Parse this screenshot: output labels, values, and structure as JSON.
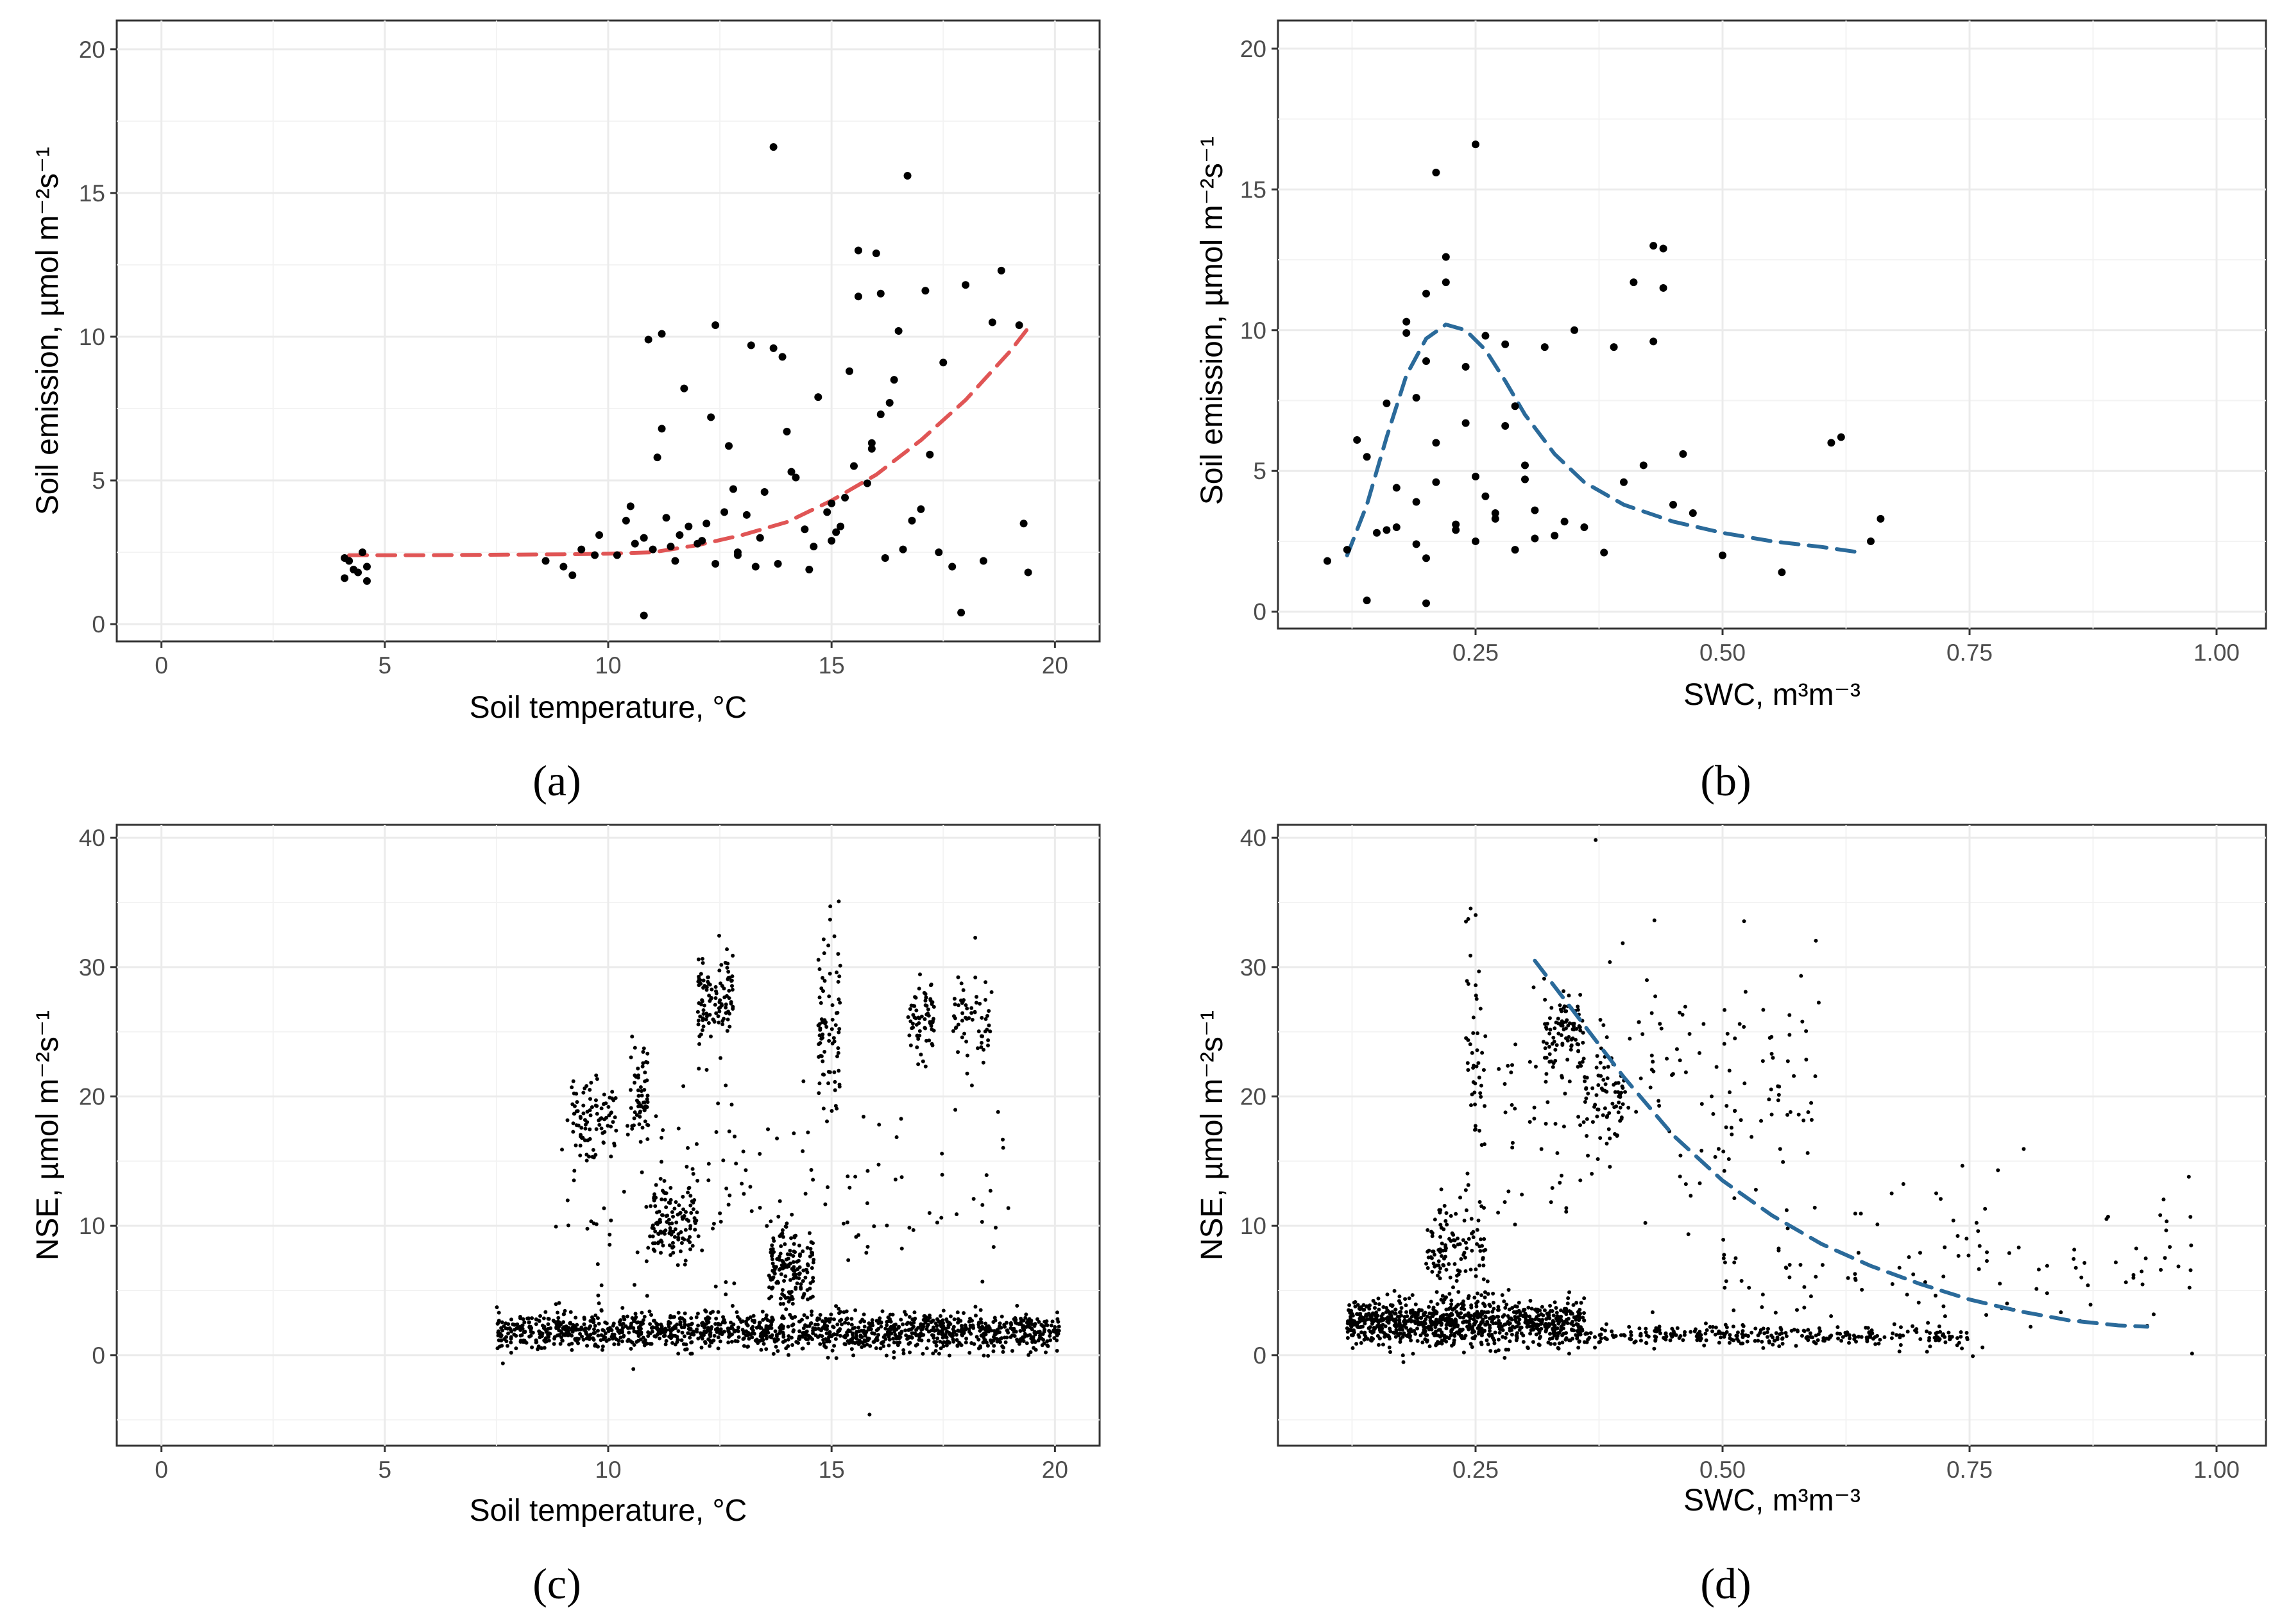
{
  "chart_data": [
    {
      "type": "scatter",
      "caption": "(a)",
      "xlabel": "Soil temperature, °C",
      "ylabel": "Soil emission, µmol m⁻²s⁻¹",
      "xlim": [
        -1,
        21
      ],
      "ylim": [
        -0.6,
        21
      ],
      "xticks": [
        0,
        5,
        10,
        15,
        20
      ],
      "xtick_labels": [
        "0",
        "5",
        "10",
        "15",
        "20"
      ],
      "yticks": [
        0,
        5,
        10,
        15,
        20
      ],
      "ytick_labels": [
        "0",
        "5",
        "10",
        "15",
        "20"
      ],
      "grid": true,
      "legend": "none",
      "point_color": "#000000",
      "fit_color": "#e05555",
      "fit_style": "dashed",
      "fit": {
        "x": [
          4.2,
          6,
          8,
          9,
          10,
          11,
          12,
          13,
          14,
          15,
          16,
          17,
          18,
          19,
          19.4
        ],
        "y": [
          2.4,
          2.4,
          2.42,
          2.43,
          2.45,
          2.5,
          2.75,
          3.1,
          3.55,
          4.3,
          5.2,
          6.4,
          7.8,
          9.5,
          10.3
        ]
      },
      "points": {
        "x": [
          4.1,
          4.2,
          4.3,
          4.5,
          4.6,
          4.4,
          4.1,
          4.6,
          8.6,
          9.0,
          9.4,
          9.8,
          10.2,
          10.5,
          10.8,
          11.0,
          11.2,
          11.5,
          11.8,
          12.0,
          12.3,
          12.6,
          12.9,
          13.2,
          13.5,
          13.8,
          14.1,
          14.4,
          14.7,
          15.0,
          15.3,
          15.6,
          15.9,
          16.2,
          16.5,
          16.8,
          17.1,
          17.4,
          17.7,
          18.0,
          18.4,
          18.8,
          19.2,
          19.3,
          19.4,
          10.9,
          11.3,
          11.7,
          12.4,
          12.7,
          13.1,
          13.7,
          14.2,
          14.6,
          15.1,
          15.4,
          15.8,
          16.1,
          16.6,
          17.0,
          17.5,
          9.2,
          9.7,
          10.4,
          11.1,
          12.1,
          12.8,
          13.4,
          14.0,
          14.9,
          15.5,
          16.0,
          16.4,
          17.2,
          18.6,
          13.7,
          16.7,
          15.6,
          16.1,
          11.2,
          12.4,
          13.9,
          15.0,
          15.9,
          16.3,
          10.6,
          11.6,
          12.9,
          14.5,
          15.2,
          17.9,
          10.8,
          11.4,
          12.2,
          13.3
        ],
        "y": [
          1.6,
          2.2,
          1.9,
          2.5,
          2.0,
          1.8,
          2.3,
          1.5,
          2.2,
          2.0,
          2.6,
          3.1,
          2.4,
          4.1,
          3.0,
          2.6,
          6.8,
          2.2,
          3.4,
          2.8,
          7.2,
          3.9,
          2.5,
          9.7,
          4.6,
          2.1,
          5.3,
          3.3,
          7.9,
          2.9,
          4.4,
          11.4,
          6.1,
          2.3,
          10.2,
          3.6,
          11.6,
          2.5,
          2.0,
          11.8,
          2.2,
          12.3,
          10.4,
          3.5,
          1.8,
          9.9,
          3.7,
          8.2,
          2.1,
          6.2,
          3.8,
          9.6,
          5.1,
          2.7,
          3.2,
          8.8,
          4.9,
          7.3,
          2.6,
          4.0,
          9.1,
          1.7,
          2.4,
          3.6,
          5.8,
          2.9,
          4.7,
          3.0,
          6.7,
          3.9,
          5.5,
          12.9,
          8.5,
          5.9,
          10.5,
          16.6,
          15.6,
          13.0,
          11.5,
          10.1,
          10.4,
          9.3,
          4.2,
          6.3,
          7.7,
          2.8,
          3.1,
          2.4,
          1.9,
          3.4,
          0.4,
          0.3,
          2.7,
          3.5,
          2.0
        ]
      }
    },
    {
      "type": "scatter",
      "caption": "(b)",
      "xlabel": "SWC, m³m⁻³",
      "ylabel": "Soil emission, µmol m⁻²s⁻¹",
      "xlim": [
        0.05,
        1.05
      ],
      "ylim": [
        -0.6,
        21
      ],
      "xticks": [
        0.25,
        0.5,
        0.75,
        1.0
      ],
      "xtick_labels": [
        "0.25",
        "0.50",
        "0.75",
        "1.00"
      ],
      "yticks": [
        0,
        5,
        10,
        15,
        20
      ],
      "ytick_labels": [
        "0",
        "5",
        "10",
        "15",
        "20"
      ],
      "grid": true,
      "legend": "none",
      "point_color": "#000000",
      "fit_color": "#2a6a9a",
      "fit_style": "dashed",
      "fit": {
        "x": [
          0.12,
          0.14,
          0.16,
          0.18,
          0.2,
          0.22,
          0.24,
          0.26,
          0.28,
          0.3,
          0.33,
          0.36,
          0.4,
          0.45,
          0.5,
          0.55,
          0.6,
          0.64
        ],
        "y": [
          2.0,
          3.8,
          6.2,
          8.4,
          9.7,
          10.2,
          10.0,
          9.3,
          8.2,
          7.0,
          5.6,
          4.6,
          3.8,
          3.2,
          2.8,
          2.5,
          2.3,
          2.1
        ]
      },
      "points": {
        "x": [
          0.1,
          0.12,
          0.14,
          0.15,
          0.16,
          0.17,
          0.18,
          0.19,
          0.2,
          0.21,
          0.22,
          0.23,
          0.24,
          0.25,
          0.26,
          0.27,
          0.28,
          0.29,
          0.3,
          0.31,
          0.32,
          0.33,
          0.34,
          0.36,
          0.38,
          0.4,
          0.41,
          0.42,
          0.43,
          0.44,
          0.45,
          0.46,
          0.47,
          0.5,
          0.56,
          0.61,
          0.62,
          0.66,
          0.65,
          0.13,
          0.17,
          0.19,
          0.21,
          0.23,
          0.25,
          0.27,
          0.29,
          0.31,
          0.18,
          0.2,
          0.22,
          0.24,
          0.26,
          0.28,
          0.16,
          0.2,
          0.21,
          0.25,
          0.14,
          0.3,
          0.35,
          0.39,
          0.43,
          0.44,
          0.2,
          0.19
        ],
        "y": [
          1.8,
          2.2,
          5.5,
          2.8,
          7.4,
          3.0,
          9.9,
          2.4,
          11.3,
          4.6,
          12.6,
          3.1,
          8.7,
          2.5,
          9.8,
          3.5,
          6.6,
          2.2,
          5.2,
          3.6,
          9.4,
          2.7,
          3.2,
          3.0,
          2.1,
          4.6,
          11.7,
          5.2,
          13.0,
          11.5,
          3.8,
          5.6,
          3.5,
          2.0,
          1.4,
          6.0,
          6.2,
          3.3,
          2.5,
          6.1,
          4.4,
          7.6,
          6.0,
          2.9,
          4.8,
          3.3,
          7.3,
          2.6,
          10.3,
          8.9,
          11.7,
          6.7,
          4.1,
          9.5,
          2.9,
          1.9,
          15.6,
          16.6,
          0.4,
          4.7,
          10.0,
          9.4,
          9.6,
          12.9,
          0.3,
          3.9
        ]
      }
    },
    {
      "type": "scatter",
      "caption": "(c)",
      "xlabel": "Soil temperature, °C",
      "ylabel": "NSE, µmol m⁻²s⁻¹",
      "xlim": [
        -1,
        21
      ],
      "ylim": [
        -7,
        41
      ],
      "xticks": [
        0,
        5,
        10,
        15,
        20
      ],
      "xtick_labels": [
        "0",
        "5",
        "10",
        "15",
        "20"
      ],
      "yticks": [
        0,
        10,
        20,
        30,
        40
      ],
      "ytick_labels": [
        "0",
        "10",
        "20",
        "30",
        "40"
      ],
      "grid": true,
      "legend": "none",
      "point_color": "#000000",
      "clusters": [
        {
          "x_range": [
            7.5,
            20.1
          ],
          "y_center": 1.8,
          "y_spread": 1.4,
          "n": 1400
        },
        {
          "x_range": [
            9.2,
            10.2
          ],
          "y_center": 18.5,
          "y_spread": 3.0,
          "n": 90
        },
        {
          "x_range": [
            10.5,
            10.9
          ],
          "y_center": 20.0,
          "y_spread": 4.0,
          "n": 60
        },
        {
          "x_range": [
            11.0,
            12.0
          ],
          "y_center": 10.5,
          "y_spread": 3.0,
          "n": 120
        },
        {
          "x_range": [
            12.0,
            12.8
          ],
          "y_center": 27.0,
          "y_spread": 4.0,
          "n": 110
        },
        {
          "x_range": [
            13.6,
            14.6
          ],
          "y_center": 6.5,
          "y_spread": 3.5,
          "n": 160
        },
        {
          "x_range": [
            14.7,
            15.2
          ],
          "y_center": 25.0,
          "y_spread": 8.0,
          "n": 80
        },
        {
          "x_range": [
            16.7,
            17.3
          ],
          "y_center": 25.5,
          "y_spread": 3.0,
          "n": 70
        },
        {
          "x_range": [
            17.7,
            18.6
          ],
          "y_center": 26.0,
          "y_spread": 4.0,
          "n": 60
        },
        {
          "x_range": [
            8.8,
            19.0
          ],
          "y_center": 12.0,
          "y_spread": 10.0,
          "n": 160
        }
      ]
    },
    {
      "type": "scatter",
      "caption": "(d)",
      "xlabel": "SWC, m³m⁻³",
      "ylabel": "NSE, µmol m⁻²s⁻¹",
      "xlim": [
        0.05,
        1.05
      ],
      "ylim": [
        -7,
        41
      ],
      "xticks": [
        0.25,
        0.5,
        0.75,
        1.0
      ],
      "xtick_labels": [
        "0.25",
        "0.50",
        "0.75",
        "1.00"
      ],
      "yticks": [
        0,
        10,
        20,
        30,
        40
      ],
      "ytick_labels": [
        "0",
        "10",
        "20",
        "30",
        "40"
      ],
      "grid": true,
      "legend": "none",
      "point_color": "#000000",
      "fit_color": "#2a6a9a",
      "fit_style": "dashed",
      "fit": {
        "x": [
          0.31,
          0.35,
          0.4,
          0.45,
          0.5,
          0.55,
          0.6,
          0.65,
          0.7,
          0.75,
          0.8,
          0.85,
          0.9,
          0.93
        ],
        "y": [
          30.5,
          26.5,
          21.5,
          17.0,
          13.5,
          10.8,
          8.6,
          6.9,
          5.5,
          4.3,
          3.4,
          2.7,
          2.3,
          2.2
        ]
      },
      "clusters": [
        {
          "x_range": [
            0.12,
            0.36
          ],
          "y_center": 2.5,
          "y_spread": 1.8,
          "n": 900
        },
        {
          "x_range": [
            0.36,
            0.75
          ],
          "y_center": 1.5,
          "y_spread": 0.8,
          "n": 300
        },
        {
          "x_range": [
            0.2,
            0.26
          ],
          "y_center": 8.0,
          "y_spread": 4.0,
          "n": 120
        },
        {
          "x_range": [
            0.32,
            0.36
          ],
          "y_center": 25.0,
          "y_spread": 3.0,
          "n": 90
        },
        {
          "x_range": [
            0.36,
            0.4
          ],
          "y_center": 20.0,
          "y_spread": 3.0,
          "n": 60
        },
        {
          "x_range": [
            0.27,
            0.6
          ],
          "y_center": 20.0,
          "y_spread": 12.0,
          "n": 180
        },
        {
          "x_range": [
            0.5,
            0.98
          ],
          "y_center": 7.0,
          "y_spread": 6.0,
          "n": 120
        },
        {
          "x_range": [
            0.24,
            0.26
          ],
          "y_center": 22.0,
          "y_spread": 12.0,
          "n": 50
        }
      ]
    }
  ]
}
